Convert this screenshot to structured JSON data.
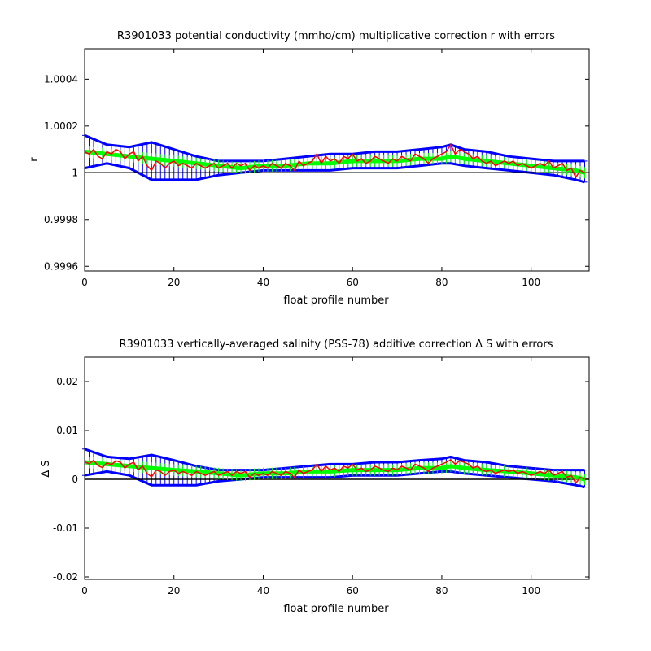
{
  "chart_data": [
    {
      "type": "line",
      "title": "R3901033 potential conductivity (mmho/cm) multiplicative correction r with errors",
      "xlabel": "float profile number",
      "ylabel": "r",
      "xlim": [
        0,
        113
      ],
      "ylim": [
        0.99958,
        1.00053
      ],
      "xticks": [
        0,
        20,
        40,
        60,
        80,
        100
      ],
      "xtick_labels": [
        "0",
        "20",
        "40",
        "60",
        "80",
        "100"
      ],
      "yticks": [
        0.9996,
        0.9998,
        1,
        1.0002,
        1.0004
      ],
      "ytick_labels": [
        "0.9996",
        "0.9998",
        "1",
        "1.0002",
        "1.0004"
      ],
      "reference_line": 1.0,
      "colors": {
        "error_bars": "#0000ff",
        "fit": "#00ff00",
        "raw": "#ff0000",
        "reference": "#000000"
      },
      "series": [
        {
          "role": "raw",
          "x": [
            0,
            1,
            2,
            3,
            4,
            5,
            6,
            7,
            8,
            9,
            10,
            11,
            12,
            13,
            14,
            15,
            16,
            17,
            18,
            19,
            20,
            21,
            22,
            23,
            24,
            25,
            26,
            27,
            28,
            29,
            30,
            31,
            32,
            33,
            34,
            35,
            36,
            37,
            38,
            39,
            40,
            41,
            42,
            43,
            44,
            45,
            46,
            47,
            48,
            49,
            50,
            51,
            52,
            53,
            54,
            55,
            56,
            57,
            58,
            59,
            60,
            61,
            62,
            63,
            64,
            65,
            66,
            67,
            68,
            69,
            70,
            71,
            72,
            73,
            74,
            75,
            76,
            77,
            78,
            79,
            80,
            81,
            82,
            83,
            84,
            85,
            86,
            87,
            88,
            89,
            90,
            91,
            92,
            93,
            94,
            95,
            96,
            97,
            98,
            99,
            100,
            101,
            102,
            103,
            104,
            105,
            106,
            107,
            108,
            109,
            110,
            111,
            112
          ],
          "y": [
            1.00009,
            1.00008,
            1.0001,
            1.00007,
            1.00006,
            1.00009,
            1.00008,
            1.0001,
            1.00009,
            1.00006,
            1.00008,
            1.00009,
            1.00005,
            1.00007,
            1.00003,
            1.00001,
            1.00005,
            1.00004,
            1.00002,
            1.00004,
            1.00005,
            1.00003,
            1.00004,
            1.00003,
            1.00002,
            1.00004,
            1.00003,
            1.00002,
            1.00003,
            1.00004,
            1.00002,
            1.00003,
            1.00004,
            1.00002,
            1.00004,
            1.00003,
            1.00004,
            1.00001,
            1.00003,
            1.00002,
            1.00003,
            1.00002,
            1.00004,
            1.00003,
            1.00002,
            1.00004,
            1.00003,
            1.00001,
            1.00005,
            1.00003,
            1.00004,
            1.00005,
            1.00008,
            1.00004,
            1.00007,
            1.00005,
            1.00006,
            1.00004,
            1.00007,
            1.00006,
            1.00008,
            1.00005,
            1.00006,
            1.00004,
            1.00005,
            1.00007,
            1.00006,
            1.00005,
            1.00004,
            1.00006,
            1.00005,
            1.00007,
            1.00006,
            1.00005,
            1.00008,
            1.00007,
            1.00006,
            1.00004,
            1.00006,
            1.00007,
            1.00008,
            1.00009,
            1.00012,
            1.00008,
            1.0001,
            1.00009,
            1.00008,
            1.00006,
            1.00007,
            1.00005,
            1.00004,
            1.00005,
            1.00003,
            1.00004,
            1.00005,
            1.00004,
            1.00005,
            1.00003,
            1.00004,
            1.00003,
            1.00002,
            1.00003,
            1.00004,
            1.00003,
            1.00005,
            1.00002,
            1.00003,
            1.00004,
            1.00001,
            1.00002,
            0.99998,
            1.00001,
            1.0
          ]
        },
        {
          "role": "fit",
          "x": [
            0,
            5,
            10,
            15,
            20,
            25,
            30,
            35,
            40,
            45,
            50,
            55,
            60,
            65,
            70,
            75,
            80,
            82,
            85,
            90,
            95,
            100,
            105,
            110,
            112
          ],
          "y": [
            1.00009,
            1.00008,
            1.00007,
            1.00006,
            1.00005,
            1.00004,
            1.00003,
            1.00002,
            1.00003,
            1.00003,
            1.00004,
            1.00004,
            1.00005,
            1.00005,
            1.00005,
            1.00006,
            1.00006,
            1.00007,
            1.00006,
            1.00005,
            1.00004,
            1.00003,
            1.00002,
            1.00001,
            1.0
          ]
        },
        {
          "role": "error_upper",
          "x": [
            0,
            5,
            10,
            15,
            20,
            25,
            30,
            35,
            40,
            45,
            50,
            55,
            60,
            65,
            70,
            75,
            80,
            82,
            85,
            90,
            95,
            100,
            105,
            110,
            112
          ],
          "y": [
            1.00016,
            1.00012,
            1.00011,
            1.00013,
            1.0001,
            1.00007,
            1.00005,
            1.00005,
            1.00005,
            1.00006,
            1.00007,
            1.00008,
            1.00008,
            1.00009,
            1.00009,
            1.0001,
            1.00011,
            1.00012,
            1.0001,
            1.00009,
            1.00007,
            1.00006,
            1.00005,
            1.00005,
            1.00005
          ]
        },
        {
          "role": "error_lower",
          "x": [
            0,
            5,
            10,
            15,
            20,
            25,
            30,
            35,
            40,
            45,
            50,
            55,
            60,
            65,
            70,
            75,
            80,
            82,
            85,
            90,
            95,
            100,
            105,
            110,
            112
          ],
          "y": [
            1.00002,
            1.00004,
            1.00002,
            0.99997,
            0.99997,
            0.99997,
            0.99999,
            1.0,
            1.00001,
            1.00001,
            1.00001,
            1.00001,
            1.00002,
            1.00002,
            1.00002,
            1.00003,
            1.00004,
            1.00004,
            1.00003,
            1.00002,
            1.00001,
            1.0,
            0.99999,
            0.99997,
            0.99996
          ]
        }
      ]
    },
    {
      "type": "line",
      "title": "R3901033 vertically-averaged salinity (PSS-78) additive correction Δ S with errors",
      "xlabel": "float profile number",
      "ylabel": "Δ S",
      "xlim": [
        0,
        113
      ],
      "ylim": [
        -0.0205,
        0.025
      ],
      "xticks": [
        0,
        20,
        40,
        60,
        80,
        100
      ],
      "xtick_labels": [
        "0",
        "20",
        "40",
        "60",
        "80",
        "100"
      ],
      "yticks": [
        -0.02,
        -0.01,
        0,
        0.01,
        0.02
      ],
      "ytick_labels": [
        "-0.02",
        "-0.01",
        "0",
        "0.01",
        "0.02"
      ],
      "reference_line": 0,
      "colors": {
        "error_bars": "#0000ff",
        "fit": "#00ff00",
        "raw": "#ff0000",
        "reference": "#000000"
      },
      "series": [
        {
          "role": "raw",
          "x": [
            0,
            1,
            2,
            3,
            4,
            5,
            6,
            7,
            8,
            9,
            10,
            11,
            12,
            13,
            14,
            15,
            16,
            17,
            18,
            19,
            20,
            21,
            22,
            23,
            24,
            25,
            26,
            27,
            28,
            29,
            30,
            31,
            32,
            33,
            34,
            35,
            36,
            37,
            38,
            39,
            40,
            41,
            42,
            43,
            44,
            45,
            46,
            47,
            48,
            49,
            50,
            51,
            52,
            53,
            54,
            55,
            56,
            57,
            58,
            59,
            60,
            61,
            62,
            63,
            64,
            65,
            66,
            67,
            68,
            69,
            70,
            71,
            72,
            73,
            74,
            75,
            76,
            77,
            78,
            79,
            80,
            81,
            82,
            83,
            84,
            85,
            86,
            87,
            88,
            89,
            90,
            91,
            92,
            93,
            94,
            95,
            96,
            97,
            98,
            99,
            100,
            101,
            102,
            103,
            104,
            105,
            106,
            107,
            108,
            109,
            110,
            111,
            112
          ],
          "y": [
            0.0036,
            0.0032,
            0.0039,
            0.0028,
            0.0024,
            0.0034,
            0.003,
            0.0038,
            0.0035,
            0.0023,
            0.0031,
            0.0035,
            0.0019,
            0.0027,
            0.0012,
            0.0005,
            0.0019,
            0.0016,
            0.0008,
            0.0016,
            0.0019,
            0.0012,
            0.0016,
            0.0012,
            0.0008,
            0.0016,
            0.0012,
            0.0008,
            0.0012,
            0.0016,
            0.0008,
            0.0012,
            0.0016,
            0.0008,
            0.0016,
            0.0012,
            0.0016,
            0.0004,
            0.0012,
            0.0008,
            0.0012,
            0.0008,
            0.0016,
            0.0012,
            0.0008,
            0.0016,
            0.0012,
            0.0004,
            0.0019,
            0.0012,
            0.0016,
            0.0019,
            0.0031,
            0.0016,
            0.0027,
            0.0019,
            0.0023,
            0.0016,
            0.0027,
            0.0023,
            0.0031,
            0.0019,
            0.0023,
            0.0016,
            0.0019,
            0.0027,
            0.0023,
            0.0019,
            0.0016,
            0.0023,
            0.0019,
            0.0027,
            0.0023,
            0.0019,
            0.0031,
            0.0027,
            0.0023,
            0.0016,
            0.0023,
            0.0027,
            0.0031,
            0.0035,
            0.004,
            0.0031,
            0.0038,
            0.0035,
            0.0031,
            0.0023,
            0.0027,
            0.0019,
            0.0016,
            0.0019,
            0.0012,
            0.0016,
            0.0019,
            0.0016,
            0.0019,
            0.0012,
            0.0016,
            0.0012,
            0.0008,
            0.0012,
            0.0016,
            0.0012,
            0.0019,
            0.0008,
            0.0012,
            0.0016,
            0.0004,
            0.0008,
            -0.0008,
            0.0004,
            0.0
          ]
        },
        {
          "role": "fit",
          "x": [
            0,
            5,
            10,
            15,
            20,
            25,
            30,
            35,
            40,
            45,
            50,
            55,
            60,
            65,
            70,
            75,
            80,
            82,
            85,
            90,
            95,
            100,
            105,
            110,
            112
          ],
          "y": [
            0.0035,
            0.0031,
            0.0027,
            0.0023,
            0.0019,
            0.0016,
            0.0012,
            0.0008,
            0.0012,
            0.0012,
            0.0016,
            0.0016,
            0.0019,
            0.0019,
            0.0019,
            0.0023,
            0.0023,
            0.0027,
            0.0023,
            0.0019,
            0.0016,
            0.0012,
            0.0008,
            0.0004,
            0.0
          ]
        },
        {
          "role": "error_upper",
          "x": [
            0,
            5,
            10,
            15,
            20,
            25,
            30,
            35,
            40,
            45,
            50,
            55,
            60,
            65,
            70,
            75,
            80,
            82,
            85,
            90,
            95,
            100,
            105,
            110,
            112
          ],
          "y": [
            0.0062,
            0.0046,
            0.0042,
            0.005,
            0.0039,
            0.0027,
            0.0019,
            0.0019,
            0.0019,
            0.0023,
            0.0027,
            0.0031,
            0.0031,
            0.0035,
            0.0035,
            0.0039,
            0.0042,
            0.0046,
            0.0039,
            0.0035,
            0.0027,
            0.0023,
            0.0019,
            0.0019,
            0.0019
          ]
        },
        {
          "role": "error_lower",
          "x": [
            0,
            5,
            10,
            15,
            20,
            25,
            30,
            35,
            40,
            45,
            50,
            55,
            60,
            65,
            70,
            75,
            80,
            82,
            85,
            90,
            95,
            100,
            105,
            110,
            112
          ],
          "y": [
            0.0008,
            0.0016,
            0.0008,
            -0.0012,
            -0.0012,
            -0.0012,
            -0.0004,
            0.0,
            0.0004,
            0.0004,
            0.0004,
            0.0004,
            0.0008,
            0.0008,
            0.0008,
            0.0012,
            0.0016,
            0.0016,
            0.0012,
            0.0008,
            0.0004,
            0.0,
            -0.0004,
            -0.0012,
            -0.0016
          ]
        }
      ]
    }
  ]
}
